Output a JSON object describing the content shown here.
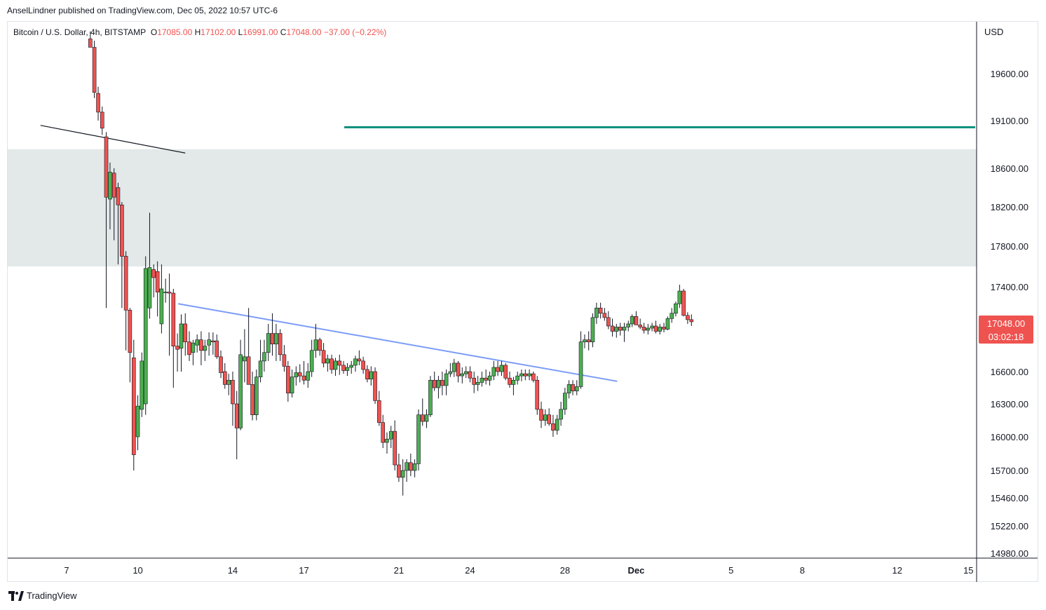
{
  "header": {
    "publisher_line": "AnselLindner published on TradingView.com, Dec 05, 2022 10:57 UTC-6"
  },
  "symbol": {
    "name": "Bitcoin / U.S. Dollar, 4h, BITSTAMP",
    "open_key": "O",
    "open": "17085.00",
    "high_key": "H",
    "high": "17102.00",
    "low_key": "L",
    "low": "16991.00",
    "close_key": "C",
    "close": "17048.00",
    "change": "−37.00 (−0.22%)"
  },
  "price_axis": {
    "currency": "USD"
  },
  "last_price": {
    "price": "17048.00",
    "countdown": "03:02:18"
  },
  "branding": {
    "name": "TradingView"
  },
  "colors": {
    "up": "#26a69a",
    "up_body": "#4caf50",
    "down": "#ef5350",
    "zone": "#e2e9e8",
    "teal_line": "#10917e",
    "trend_line": "#7b9cf7",
    "black_line": "#131722"
  },
  "chart_data": {
    "type": "candlestick",
    "timeframe": "4h",
    "y_ticks": [
      19600,
      19100,
      18600,
      18200,
      17800,
      17400,
      17048,
      16600,
      16300,
      16000,
      15700,
      15460,
      15220,
      14980
    ],
    "y_tick_labels": [
      "19600.00",
      "19100.00",
      "18600.00",
      "18200.00",
      "17800.00",
      "17400.00",
      "16600.00",
      "16300.00",
      "16000.00",
      "15700.00",
      "15460.00",
      "15220.00",
      "14980.00"
    ],
    "x_ticks": [
      {
        "label": "7",
        "day": 7
      },
      {
        "label": "10",
        "day": 10
      },
      {
        "label": "14",
        "day": 14
      },
      {
        "label": "17",
        "day": 17
      },
      {
        "label": "21",
        "day": 21
      },
      {
        "label": "24",
        "day": 24
      },
      {
        "label": "28",
        "day": 28
      },
      {
        "label": "Dec",
        "day": 31
      },
      {
        "label": "5",
        "day": 35
      },
      {
        "label": "8",
        "day": 38
      },
      {
        "label": "12",
        "day": 42
      },
      {
        "label": "15",
        "day": 45
      }
    ],
    "zone": {
      "low": 17600,
      "high": 18800
    },
    "horizontal_line": {
      "price": 19030,
      "from_day": 18.7,
      "to_day": 45.3
    },
    "trend_lines": [
      {
        "name": "descending-resistance",
        "from_day": 11.7,
        "from_price": 17240,
        "to_day": 30.2,
        "to_price": 16510
      },
      {
        "name": "black-trend",
        "from_day": 5.9,
        "from_price": 19050,
        "to_day": 12.0,
        "to_price": 18760
      }
    ],
    "candles": [
      [
        8.0,
        19970,
        20050,
        19900,
        19880
      ],
      [
        8.17,
        19880,
        19950,
        19340,
        19400
      ],
      [
        8.33,
        19390,
        19460,
        19100,
        19190
      ],
      [
        8.5,
        19190,
        19250,
        18950,
        19020
      ],
      [
        8.67,
        18930,
        18980,
        17200,
        18300
      ],
      [
        8.83,
        18280,
        18660,
        17970,
        18560
      ],
      [
        9.0,
        18550,
        18600,
        17860,
        18300
      ],
      [
        9.17,
        18400,
        18450,
        17620,
        18220
      ],
      [
        9.33,
        18220,
        18250,
        17200,
        17700
      ],
      [
        9.5,
        17700,
        17750,
        16800,
        17180
      ],
      [
        9.67,
        17180,
        17200,
        16500,
        16780
      ],
      [
        9.83,
        16730,
        16900,
        15700,
        15840
      ],
      [
        10.0,
        16000,
        16380,
        15880,
        16280
      ],
      [
        10.17,
        16250,
        16780,
        16180,
        16700
      ],
      [
        10.33,
        16300,
        17700,
        16200,
        17580
      ],
      [
        10.5,
        17200,
        18140,
        17100,
        17590
      ],
      [
        10.67,
        17570,
        17620,
        17300,
        17490
      ],
      [
        10.83,
        17550,
        17650,
        17120,
        17350
      ],
      [
        11.0,
        17050,
        17620,
        16960,
        17380
      ],
      [
        11.17,
        17350,
        17480,
        17250,
        17350
      ],
      [
        11.33,
        17350,
        17530,
        16750,
        17340
      ],
      [
        11.5,
        17340,
        17380,
        16450,
        16840
      ],
      [
        11.67,
        16840,
        16960,
        16600,
        16810
      ],
      [
        11.83,
        16820,
        17140,
        16600,
        17050
      ],
      [
        12.0,
        17050,
        17150,
        16750,
        16880
      ],
      [
        12.17,
        16880,
        16980,
        16700,
        16760
      ],
      [
        12.33,
        16780,
        16900,
        16660,
        16870
      ],
      [
        12.5,
        16850,
        16950,
        16780,
        16900
      ],
      [
        12.67,
        16900,
        16980,
        16660,
        16800
      ],
      [
        12.83,
        16800,
        16900,
        16700,
        16840
      ],
      [
        13.0,
        16850,
        16970,
        16750,
        16900
      ],
      [
        13.17,
        16890,
        16970,
        16760,
        16880
      ],
      [
        13.33,
        16890,
        16950,
        16720,
        16740
      ],
      [
        13.5,
        16740,
        16800,
        16540,
        16590
      ],
      [
        13.67,
        16600,
        16680,
        16440,
        16480
      ],
      [
        13.83,
        16480,
        16580,
        16380,
        16520
      ],
      [
        14.0,
        16520,
        16600,
        16100,
        16300
      ],
      [
        14.17,
        16300,
        16420,
        15800,
        16080
      ],
      [
        14.33,
        16080,
        16900,
        16060,
        16760
      ],
      [
        14.5,
        16700,
        17000,
        16500,
        16740
      ],
      [
        14.67,
        16740,
        17200,
        16500,
        16480
      ],
      [
        14.83,
        16480,
        16600,
        16150,
        16200
      ],
      [
        15.0,
        16200,
        16620,
        16150,
        16550
      ],
      [
        15.17,
        16550,
        16900,
        16500,
        16700
      ],
      [
        15.33,
        16700,
        16900,
        16600,
        16780
      ],
      [
        15.5,
        16780,
        17050,
        16700,
        16960
      ],
      [
        15.67,
        16960,
        17150,
        16750,
        16860
      ],
      [
        15.83,
        16860,
        17050,
        16700,
        16960
      ],
      [
        16.0,
        16960,
        17000,
        16700,
        16760
      ],
      [
        16.17,
        16760,
        16850,
        16600,
        16650
      ],
      [
        16.33,
        16650,
        16700,
        16320,
        16400
      ],
      [
        16.5,
        16400,
        16620,
        16360,
        16550
      ],
      [
        16.67,
        16550,
        16650,
        16470,
        16590
      ],
      [
        16.83,
        16590,
        16670,
        16500,
        16560
      ],
      [
        17.0,
        16560,
        16700,
        16480,
        16520
      ],
      [
        17.17,
        16520,
        16680,
        16450,
        16600
      ],
      [
        17.33,
        16600,
        16900,
        16550,
        16800
      ],
      [
        17.5,
        16800,
        17050,
        16730,
        16900
      ],
      [
        17.67,
        16900,
        16920,
        16750,
        16800
      ],
      [
        17.83,
        16800,
        16870,
        16640,
        16680
      ],
      [
        18.0,
        16680,
        16760,
        16600,
        16720
      ],
      [
        18.17,
        16720,
        16760,
        16580,
        16620
      ],
      [
        18.33,
        16620,
        16730,
        16560,
        16700
      ],
      [
        18.5,
        16700,
        16760,
        16570,
        16660
      ],
      [
        18.67,
        16660,
        16700,
        16580,
        16610
      ],
      [
        18.83,
        16610,
        16680,
        16560,
        16640
      ],
      [
        19.0,
        16640,
        16700,
        16580,
        16660
      ],
      [
        19.17,
        16660,
        16750,
        16600,
        16720
      ],
      [
        19.33,
        16720,
        16800,
        16660,
        16700
      ],
      [
        19.5,
        16700,
        16740,
        16580,
        16620
      ],
      [
        19.67,
        16620,
        16660,
        16500,
        16530
      ],
      [
        19.83,
        16530,
        16650,
        16470,
        16600
      ],
      [
        20.0,
        16600,
        16640,
        16300,
        16330
      ],
      [
        20.17,
        16330,
        16420,
        16100,
        16130
      ],
      [
        20.33,
        16130,
        16200,
        15900,
        15950
      ],
      [
        20.5,
        15950,
        16040,
        15850,
        15980
      ],
      [
        20.67,
        15980,
        16100,
        15900,
        16050
      ],
      [
        20.83,
        16050,
        16150,
        15700,
        15750
      ],
      [
        21.0,
        15750,
        15850,
        15600,
        15640
      ],
      [
        21.17,
        15640,
        15800,
        15480,
        15700
      ],
      [
        21.33,
        15700,
        15800,
        15600,
        15770
      ],
      [
        21.5,
        15770,
        15850,
        15650,
        15700
      ],
      [
        21.67,
        15700,
        15800,
        15640,
        15760
      ],
      [
        21.83,
        15760,
        16250,
        15700,
        16200
      ],
      [
        22.0,
        16200,
        16350,
        16100,
        16140
      ],
      [
        22.17,
        16140,
        16250,
        16080,
        16200
      ],
      [
        22.33,
        16200,
        16560,
        16180,
        16520
      ],
      [
        22.5,
        16520,
        16600,
        16420,
        16450
      ],
      [
        22.67,
        16450,
        16560,
        16350,
        16520
      ],
      [
        22.83,
        16520,
        16600,
        16380,
        16470
      ],
      [
        23.0,
        16470,
        16620,
        16380,
        16580
      ],
      [
        23.17,
        16580,
        16680,
        16550,
        16600
      ],
      [
        23.33,
        16600,
        16720,
        16550,
        16680
      ],
      [
        23.5,
        16680,
        16700,
        16500,
        16560
      ],
      [
        23.67,
        16560,
        16640,
        16490,
        16580
      ],
      [
        23.83,
        16580,
        16650,
        16540,
        16600
      ],
      [
        24.0,
        16600,
        16650,
        16500,
        16540
      ],
      [
        24.17,
        16540,
        16600,
        16400,
        16480
      ],
      [
        24.33,
        16480,
        16560,
        16420,
        16500
      ],
      [
        24.5,
        16500,
        16600,
        16460,
        16540
      ],
      [
        24.67,
        16540,
        16620,
        16480,
        16520
      ],
      [
        24.83,
        16520,
        16600,
        16470,
        16560
      ],
      [
        25.0,
        16560,
        16700,
        16520,
        16640
      ],
      [
        25.17,
        16640,
        16700,
        16560,
        16600
      ],
      [
        25.33,
        16600,
        16700,
        16560,
        16660
      ],
      [
        25.5,
        16660,
        16680,
        16520,
        16540
      ],
      [
        25.67,
        16540,
        16600,
        16450,
        16480
      ],
      [
        25.83,
        16480,
        16550,
        16380,
        16520
      ],
      [
        26.0,
        16520,
        16600,
        16480,
        16560
      ],
      [
        26.17,
        16560,
        16620,
        16510,
        16580
      ],
      [
        26.33,
        16580,
        16620,
        16520,
        16560
      ],
      [
        26.5,
        16560,
        16620,
        16520,
        16580
      ],
      [
        26.67,
        16580,
        16600,
        16500,
        16520
      ],
      [
        26.83,
        16520,
        16560,
        16200,
        16250
      ],
      [
        27.0,
        16250,
        16320,
        16080,
        16150
      ],
      [
        27.17,
        16150,
        16250,
        16100,
        16200
      ],
      [
        27.33,
        16200,
        16260,
        16100,
        16120
      ],
      [
        27.5,
        16120,
        16200,
        16000,
        16060
      ],
      [
        27.67,
        16060,
        16200,
        16020,
        16160
      ],
      [
        27.83,
        16160,
        16320,
        16100,
        16250
      ],
      [
        28.0,
        16250,
        16450,
        16200,
        16400
      ],
      [
        28.17,
        16400,
        16520,
        16350,
        16480
      ],
      [
        28.33,
        16480,
        16520,
        16380,
        16420
      ],
      [
        28.5,
        16420,
        16520,
        16380,
        16460
      ],
      [
        28.67,
        16460,
        16980,
        16440,
        16880
      ],
      [
        28.83,
        16880,
        16950,
        16820,
        16900
      ],
      [
        29.0,
        16900,
        16980,
        16800,
        16880
      ],
      [
        29.17,
        16880,
        17150,
        16830,
        17110
      ],
      [
        29.33,
        17110,
        17250,
        17050,
        17200
      ],
      [
        29.5,
        17200,
        17250,
        17100,
        17150
      ],
      [
        29.67,
        17150,
        17200,
        17080,
        17110
      ],
      [
        29.83,
        17110,
        17170,
        17000,
        17030
      ],
      [
        30.0,
        17030,
        17100,
        16930,
        16980
      ],
      [
        30.17,
        16980,
        17050,
        16920,
        17020
      ],
      [
        30.33,
        17020,
        17060,
        16940,
        16990
      ],
      [
        30.5,
        16990,
        17060,
        16880,
        17020
      ],
      [
        30.67,
        17020,
        17080,
        16980,
        17050
      ],
      [
        30.83,
        17050,
        17140,
        17020,
        17120
      ],
      [
        31.0,
        17120,
        17170,
        17080,
        17040
      ],
      [
        31.17,
        17040,
        17100,
        17000,
        17020
      ],
      [
        31.33,
        17020,
        17060,
        16960,
        16990
      ],
      [
        31.5,
        16990,
        17050,
        16950,
        17010
      ],
      [
        31.67,
        17010,
        17060,
        16980,
        17030
      ],
      [
        31.83,
        17030,
        17080,
        16960,
        16980
      ],
      [
        32.0,
        16980,
        17050,
        16950,
        17020
      ],
      [
        32.17,
        17020,
        17060,
        16970,
        17000
      ],
      [
        32.33,
        17000,
        17120,
        16990,
        17100
      ],
      [
        32.5,
        17100,
        17200,
        17060,
        17150
      ],
      [
        32.67,
        17150,
        17260,
        17120,
        17240
      ],
      [
        32.83,
        17240,
        17420,
        17200,
        17360
      ],
      [
        33.0,
        17360,
        17380,
        17120,
        17130
      ],
      [
        33.17,
        17130,
        17160,
        17050,
        17090
      ],
      [
        33.33,
        17090,
        17140,
        17030,
        17070
      ]
    ]
  }
}
